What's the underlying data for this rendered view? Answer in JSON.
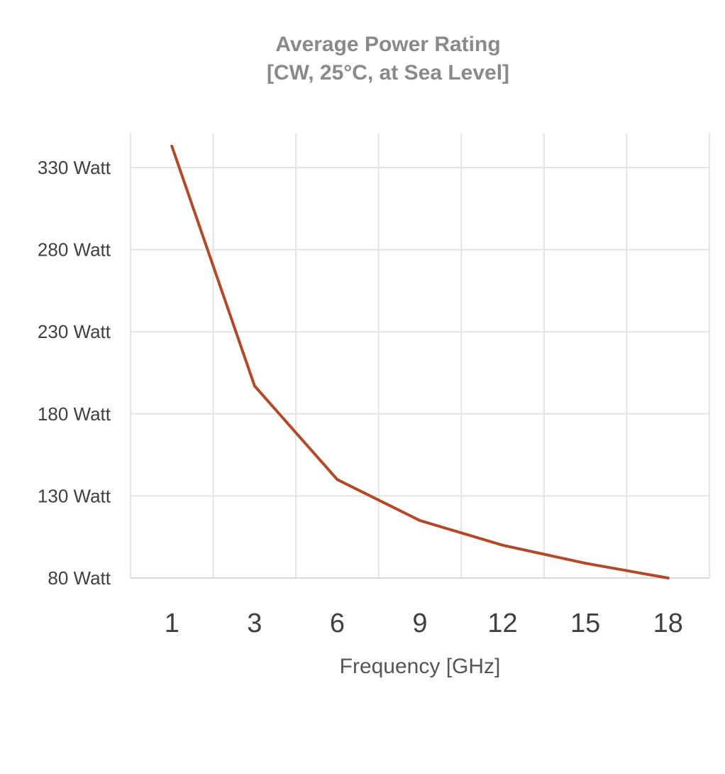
{
  "chart_data": {
    "type": "line",
    "title_lines": [
      "Average Power Rating",
      "[CW, 25°C, at Sea Level]"
    ],
    "xlabel": "Frequency [GHz]",
    "ylabel": "",
    "categories": [
      "1",
      "3",
      "6",
      "9",
      "12",
      "15",
      "18"
    ],
    "y_ticks": [
      80,
      130,
      180,
      230,
      280,
      330
    ],
    "y_tick_labels": [
      "80 Watt",
      "130 Watt",
      "180 Watt",
      "230 Watt",
      "280 Watt",
      "330 Watt"
    ],
    "ylim": [
      80,
      350
    ],
    "grid": true,
    "legend": "none",
    "series": [
      {
        "values": [
          343,
          197,
          140,
          115,
          100,
          89,
          80
        ],
        "color": "#b04a2a"
      }
    ]
  }
}
